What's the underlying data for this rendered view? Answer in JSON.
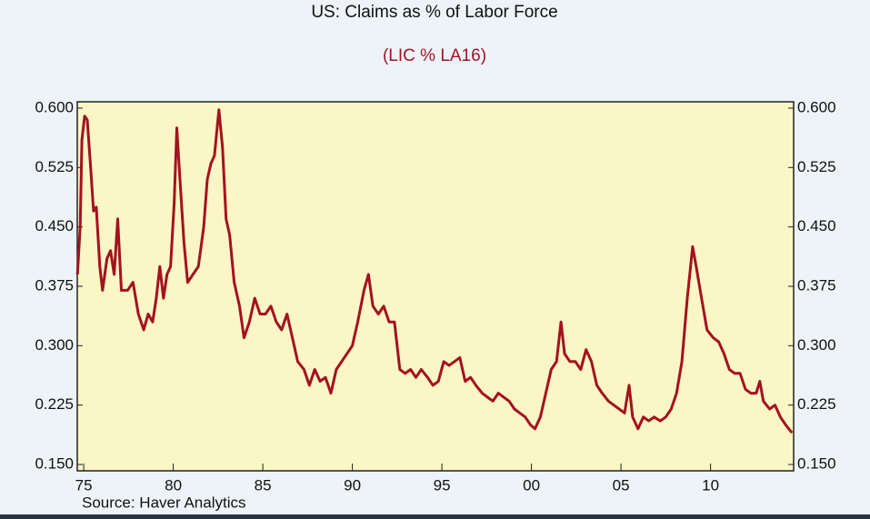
{
  "chart_data": {
    "type": "line",
    "title": "US:  Claims as % of Labor Force",
    "subtitle": "(LIC % LA16)",
    "source": "Source: Haver Analytics",
    "color": "#a3121f",
    "plot_background": "#fbf6c6",
    "xlim": [
      1974.64,
      2014.64
    ],
    "xticks": [
      {
        "value": 1975,
        "label": "75"
      },
      {
        "value": 1980,
        "label": "80"
      },
      {
        "value": 1985,
        "label": "85"
      },
      {
        "value": 1990,
        "label": "90"
      },
      {
        "value": 1995,
        "label": "95"
      },
      {
        "value": 2000,
        "label": "00"
      },
      {
        "value": 2005,
        "label": "05"
      },
      {
        "value": 2010,
        "label": "10"
      }
    ],
    "ylim": [
      0.142,
      0.608
    ],
    "yticks": [
      {
        "value": 0.15,
        "label": "0.150"
      },
      {
        "value": 0.225,
        "label": "0.225"
      },
      {
        "value": 0.3,
        "label": "0.300"
      },
      {
        "value": 0.375,
        "label": "0.375"
      },
      {
        "value": 0.45,
        "label": "0.450"
      },
      {
        "value": 0.525,
        "label": "0.525"
      },
      {
        "value": 0.6,
        "label": "0.600"
      }
    ],
    "x": [
      1974.65,
      1974.8,
      1974.9,
      1975.05,
      1975.2,
      1975.4,
      1975.55,
      1975.7,
      1975.9,
      1976.05,
      1976.3,
      1976.5,
      1976.7,
      1976.9,
      1977.1,
      1977.45,
      1977.75,
      1978.05,
      1978.35,
      1978.6,
      1978.85,
      1979.05,
      1979.25,
      1979.45,
      1979.65,
      1979.85,
      1980.05,
      1980.2,
      1980.4,
      1980.6,
      1980.8,
      1981.1,
      1981.4,
      1981.7,
      1981.9,
      1982.1,
      1982.3,
      1982.55,
      1982.75,
      1982.95,
      1983.15,
      1983.4,
      1983.7,
      1983.95,
      1984.25,
      1984.55,
      1984.85,
      1985.15,
      1985.45,
      1985.75,
      1986.05,
      1986.35,
      1986.65,
      1986.95,
      1987.3,
      1987.6,
      1987.9,
      1988.2,
      1988.5,
      1988.8,
      1989.1,
      1989.4,
      1989.7,
      1990.0,
      1990.3,
      1990.65,
      1990.9,
      1991.15,
      1991.45,
      1991.75,
      1992.05,
      1992.35,
      1992.65,
      1992.95,
      1993.25,
      1993.55,
      1993.85,
      1994.2,
      1994.5,
      1994.8,
      1995.1,
      1995.4,
      1995.7,
      1996.0,
      1996.3,
      1996.6,
      1996.9,
      1997.25,
      1997.55,
      1997.85,
      1998.15,
      1998.45,
      1998.75,
      1999.05,
      1999.35,
      1999.65,
      1999.95,
      2000.2,
      2000.5,
      2000.8,
      2001.1,
      2001.4,
      2001.65,
      2001.85,
      2002.15,
      2002.45,
      2002.75,
      2003.05,
      2003.35,
      2003.65,
      2003.95,
      2004.3,
      2004.6,
      2004.9,
      2005.2,
      2005.45,
      2005.65,
      2005.95,
      2006.25,
      2006.55,
      2006.85,
      2007.2,
      2007.5,
      2007.8,
      2008.1,
      2008.4,
      2008.7,
      2009.0,
      2009.2,
      2009.5,
      2009.8,
      2010.15,
      2010.45,
      2010.75,
      2011.05,
      2011.35,
      2011.65,
      2011.95,
      2012.25,
      2012.55,
      2012.75,
      2012.95,
      2013.3,
      2013.6,
      2013.9,
      2014.2,
      2014.55
    ],
    "values": [
      0.39,
      0.45,
      0.56,
      0.59,
      0.585,
      0.52,
      0.47,
      0.475,
      0.4,
      0.37,
      0.41,
      0.42,
      0.39,
      0.46,
      0.37,
      0.37,
      0.38,
      0.34,
      0.32,
      0.34,
      0.33,
      0.36,
      0.4,
      0.36,
      0.39,
      0.4,
      0.48,
      0.575,
      0.5,
      0.43,
      0.38,
      0.39,
      0.4,
      0.45,
      0.51,
      0.53,
      0.54,
      0.598,
      0.55,
      0.46,
      0.44,
      0.38,
      0.35,
      0.31,
      0.33,
      0.36,
      0.34,
      0.34,
      0.35,
      0.33,
      0.32,
      0.34,
      0.31,
      0.28,
      0.27,
      0.25,
      0.27,
      0.255,
      0.26,
      0.24,
      0.27,
      0.28,
      0.29,
      0.3,
      0.33,
      0.37,
      0.39,
      0.35,
      0.34,
      0.35,
      0.33,
      0.33,
      0.27,
      0.265,
      0.27,
      0.26,
      0.27,
      0.26,
      0.25,
      0.255,
      0.28,
      0.275,
      0.28,
      0.285,
      0.255,
      0.26,
      0.25,
      0.24,
      0.235,
      0.23,
      0.24,
      0.235,
      0.23,
      0.22,
      0.215,
      0.21,
      0.2,
      0.195,
      0.21,
      0.24,
      0.27,
      0.28,
      0.33,
      0.29,
      0.28,
      0.28,
      0.27,
      0.295,
      0.28,
      0.25,
      0.24,
      0.23,
      0.225,
      0.22,
      0.215,
      0.25,
      0.21,
      0.195,
      0.21,
      0.205,
      0.21,
      0.205,
      0.21,
      0.22,
      0.24,
      0.28,
      0.36,
      0.425,
      0.4,
      0.36,
      0.32,
      0.31,
      0.305,
      0.29,
      0.27,
      0.265,
      0.265,
      0.245,
      0.24,
      0.24,
      0.255,
      0.23,
      0.22,
      0.225,
      0.21,
      0.2,
      0.19
    ]
  }
}
